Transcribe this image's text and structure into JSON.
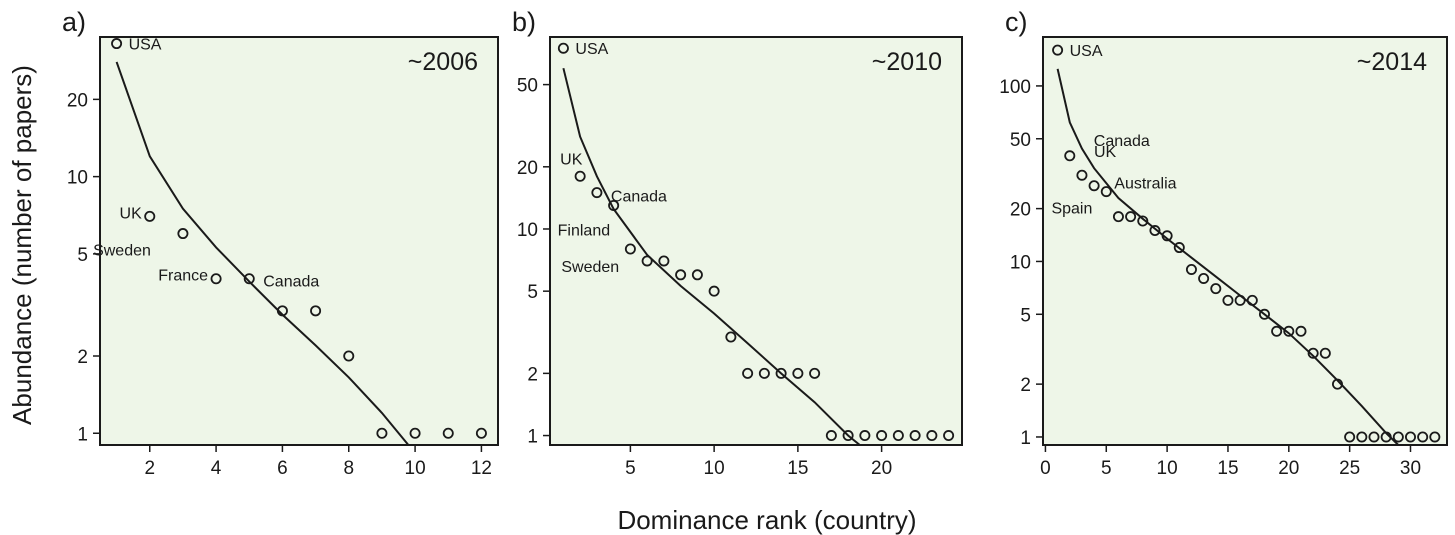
{
  "figure": {
    "ylabel": "Abundance (number of papers)",
    "xlabel": "Dominance rank (country)",
    "colors": {
      "panel_bg": "#eef6e8",
      "ink": "#1a1a1a"
    }
  },
  "chart_data": [
    {
      "type": "scatter",
      "panel": "a)",
      "period": "~2006",
      "y_scale": "log",
      "grid": false,
      "xlim": [
        0.5,
        12.5
      ],
      "ylim": [
        0.9,
        35
      ],
      "xticks": [
        2,
        4,
        6,
        8,
        10,
        12
      ],
      "yticks": [
        1,
        2,
        5,
        10,
        20
      ],
      "points": {
        "x": [
          1,
          2,
          3,
          4,
          5,
          6,
          7,
          8,
          9,
          10,
          11,
          12
        ],
        "y": [
          33,
          7,
          6,
          4,
          4,
          3,
          3,
          2,
          1,
          1,
          1,
          1
        ]
      },
      "fit_line": {
        "x": [
          1,
          2,
          3,
          4,
          5,
          6,
          7,
          8,
          9,
          9.8
        ],
        "y": [
          28,
          12,
          7.5,
          5.3,
          3.9,
          2.9,
          2.2,
          1.65,
          1.2,
          0.9
        ]
      },
      "annotations": [
        {
          "text": "USA",
          "x": 1,
          "y": 33
        },
        {
          "text": "UK",
          "x": 2,
          "y": 7
        },
        {
          "text": "Sweden",
          "x": 3,
          "y": 6
        },
        {
          "text": "France",
          "x": 4,
          "y": 4
        },
        {
          "text": "Canada",
          "x": 5,
          "y": 4
        }
      ]
    },
    {
      "type": "scatter",
      "panel": "b)",
      "period": "~2010",
      "y_scale": "log",
      "grid": false,
      "xlim": [
        0.2,
        24.8
      ],
      "ylim": [
        0.9,
        85
      ],
      "xticks": [
        5,
        10,
        15,
        20
      ],
      "yticks": [
        1,
        2,
        5,
        10,
        20,
        50
      ],
      "points": {
        "x": [
          1,
          2,
          3,
          4,
          5,
          6,
          7,
          8,
          9,
          10,
          11,
          12,
          13,
          14,
          15,
          16,
          17,
          18,
          19,
          20,
          21,
          22,
          23,
          24
        ],
        "y": [
          75,
          18,
          15,
          13,
          8,
          7,
          7,
          6,
          6,
          5,
          3,
          2,
          2,
          2,
          2,
          2,
          1,
          1,
          1,
          1,
          1,
          1,
          1,
          1
        ]
      },
      "fit_line": {
        "x": [
          1,
          2,
          3,
          4,
          6,
          8,
          10,
          12,
          14,
          16,
          18,
          18.7
        ],
        "y": [
          60,
          28,
          18,
          12.5,
          7.5,
          5.3,
          3.9,
          2.8,
          2.0,
          1.45,
          1.0,
          0.9
        ]
      },
      "annotations": [
        {
          "text": "USA",
          "x": 1,
          "y": 75
        },
        {
          "text": "UK",
          "x": 2,
          "y": 18
        },
        {
          "text": "Canada",
          "x": 3,
          "y": 15
        },
        {
          "text": "Finland",
          "x": 4,
          "y": 13
        },
        {
          "text": "Sweden",
          "x": 5,
          "y": 8
        }
      ]
    },
    {
      "type": "scatter",
      "panel": "c)",
      "period": "~2014",
      "y_scale": "log",
      "grid": false,
      "xlim": [
        -0.2,
        33
      ],
      "ylim": [
        0.9,
        190
      ],
      "xticks": [
        0,
        5,
        10,
        15,
        20,
        25,
        30
      ],
      "yticks": [
        1,
        2,
        5,
        10,
        20,
        50,
        100
      ],
      "points": {
        "x": [
          1,
          2,
          3,
          4,
          5,
          6,
          7,
          8,
          9,
          10,
          11,
          12,
          13,
          14,
          15,
          16,
          17,
          18,
          19,
          20,
          21,
          22,
          23,
          24,
          25,
          26,
          27,
          28,
          29,
          30,
          31,
          32
        ],
        "y": [
          160,
          40,
          31,
          27,
          25,
          18,
          18,
          17,
          15,
          14,
          12,
          9,
          8,
          7,
          6,
          6,
          6,
          5,
          4,
          4,
          4,
          3,
          3,
          2,
          1,
          1,
          1,
          1,
          1,
          1,
          1,
          1
        ]
      },
      "fit_line": {
        "x": [
          1,
          2,
          3,
          4,
          6,
          8,
          10,
          12,
          14,
          16,
          18,
          20,
          22,
          24,
          26,
          28,
          29
        ],
        "y": [
          125,
          62,
          44,
          34,
          23,
          17.5,
          13.5,
          10.5,
          8.2,
          6.4,
          5.0,
          3.9,
          2.9,
          2.1,
          1.5,
          1.05,
          0.9
        ]
      },
      "annotations": [
        {
          "text": "USA",
          "x": 1,
          "y": 160
        },
        {
          "text": "Canada",
          "x": 2,
          "y": 40
        },
        {
          "text": "UK",
          "x": 3,
          "y": 31
        },
        {
          "text": "Australia",
          "x": 5,
          "y": 25
        },
        {
          "text": "Spain",
          "x": 6,
          "y": 18
        }
      ]
    }
  ]
}
